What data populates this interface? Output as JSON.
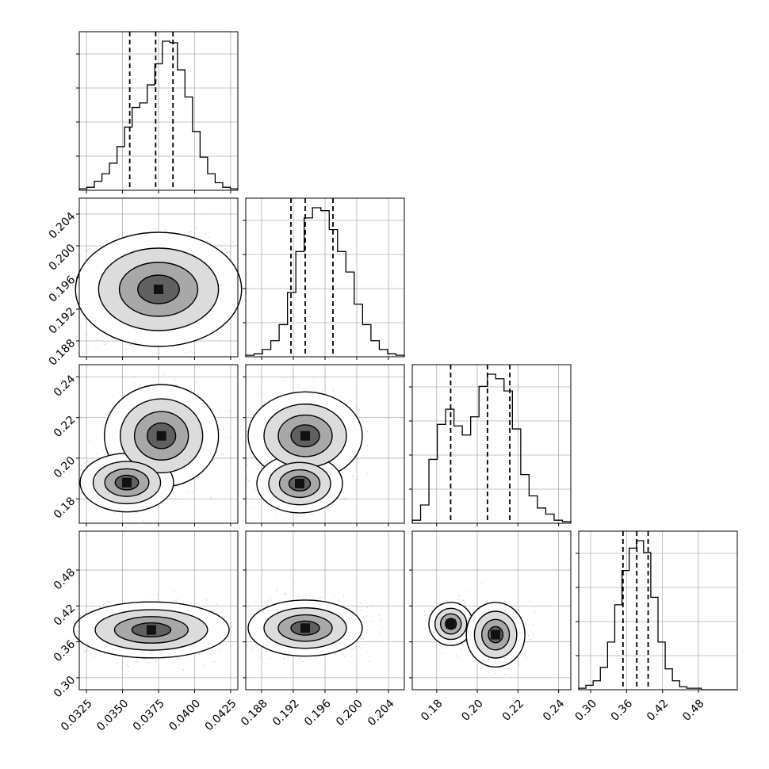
{
  "colors": {
    "line": "#000000",
    "grid": "#b0b0b0",
    "scatter": "#9a9a9a",
    "background": "#ffffff"
  },
  "chart_data": {
    "type": "corner",
    "variables": 4,
    "grid": true,
    "axes": [
      {
        "range": [
          0.032,
          0.043
        ],
        "ticks": [
          "0.0325",
          "0.0350",
          "0.0375",
          "0.0400",
          "0.0425"
        ],
        "tick_values": [
          0.0325,
          0.035,
          0.0375,
          0.04,
          0.0425
        ]
      },
      {
        "range": [
          0.186,
          0.206
        ],
        "ticks": [
          "0.188",
          "0.192",
          "0.196",
          "0.200",
          "0.204"
        ],
        "tick_values": [
          0.188,
          0.192,
          0.196,
          0.2,
          0.204
        ]
      },
      {
        "range": [
          0.168,
          0.246
        ],
        "ticks": [
          "0.18",
          "0.20",
          "0.22",
          "0.24"
        ],
        "tick_values": [
          0.18,
          0.2,
          0.22,
          0.24
        ]
      },
      {
        "range": [
          0.28,
          0.545
        ],
        "ticks": [
          "0.30",
          "0.36",
          "0.42",
          "0.48"
        ],
        "tick_values": [
          0.3,
          0.36,
          0.42,
          0.48
        ]
      }
    ],
    "quantiles": [
      [
        0.0355,
        0.0373,
        0.0385
      ],
      [
        0.1917,
        0.1935,
        0.197
      ],
      [
        0.1869,
        0.205,
        0.216
      ],
      [
        0.354,
        0.377,
        0.396
      ]
    ],
    "histograms": [
      {
        "counts": [
          1,
          2,
          6,
          11,
          18,
          29,
          42,
          55,
          58,
          70,
          84,
          99,
          98,
          80,
          62,
          39,
          22,
          11,
          5,
          2,
          1
        ]
      },
      {
        "counts": [
          1,
          2,
          5,
          11,
          22,
          44,
          72,
          95,
          102,
          100,
          87,
          72,
          58,
          36,
          22,
          11,
          5,
          2,
          1
        ]
      },
      {
        "counts": [
          2,
          12,
          42,
          65,
          75,
          64,
          58,
          70,
          90,
          98,
          95,
          87,
          62,
          32,
          18,
          10,
          6,
          2,
          1
        ]
      },
      {
        "counts": [
          1,
          3,
          6,
          15,
          32,
          57,
          80,
          95,
          100,
          92,
          62,
          32,
          14,
          6,
          2,
          1,
          1,
          0,
          0,
          0,
          0,
          0
        ]
      }
    ],
    "density_blobs": [
      {
        "row": 1,
        "col": 0,
        "mx": 0.0375,
        "my": 0.1945,
        "rx": 0.0032,
        "ry": 0.004,
        "weight": 1.0
      },
      {
        "row": 2,
        "col": 0,
        "mx": 0.0377,
        "my": 0.211,
        "rx": 0.0022,
        "ry": 0.014,
        "weight": 0.62
      },
      {
        "row": 2,
        "col": 0,
        "mx": 0.0353,
        "my": 0.188,
        "rx": 0.0018,
        "ry": 0.008,
        "weight": 0.38
      },
      {
        "row": 2,
        "col": 1,
        "mx": 0.1935,
        "my": 0.211,
        "rx": 0.004,
        "ry": 0.012,
        "weight": 0.62
      },
      {
        "row": 2,
        "col": 1,
        "mx": 0.1928,
        "my": 0.1875,
        "rx": 0.003,
        "ry": 0.008,
        "weight": 0.38
      },
      {
        "row": 3,
        "col": 0,
        "mx": 0.037,
        "my": 0.38,
        "rx": 0.003,
        "ry": 0.026,
        "weight": 1.0
      },
      {
        "row": 3,
        "col": 1,
        "mx": 0.1935,
        "my": 0.383,
        "rx": 0.004,
        "ry": 0.026,
        "weight": 1.0
      },
      {
        "row": 3,
        "col": 2,
        "mx": 0.187,
        "my": 0.39,
        "rx": 0.006,
        "ry": 0.02,
        "weight": 0.38
      },
      {
        "row": 3,
        "col": 2,
        "mx": 0.209,
        "my": 0.372,
        "rx": 0.008,
        "ry": 0.03,
        "weight": 0.62
      }
    ]
  }
}
